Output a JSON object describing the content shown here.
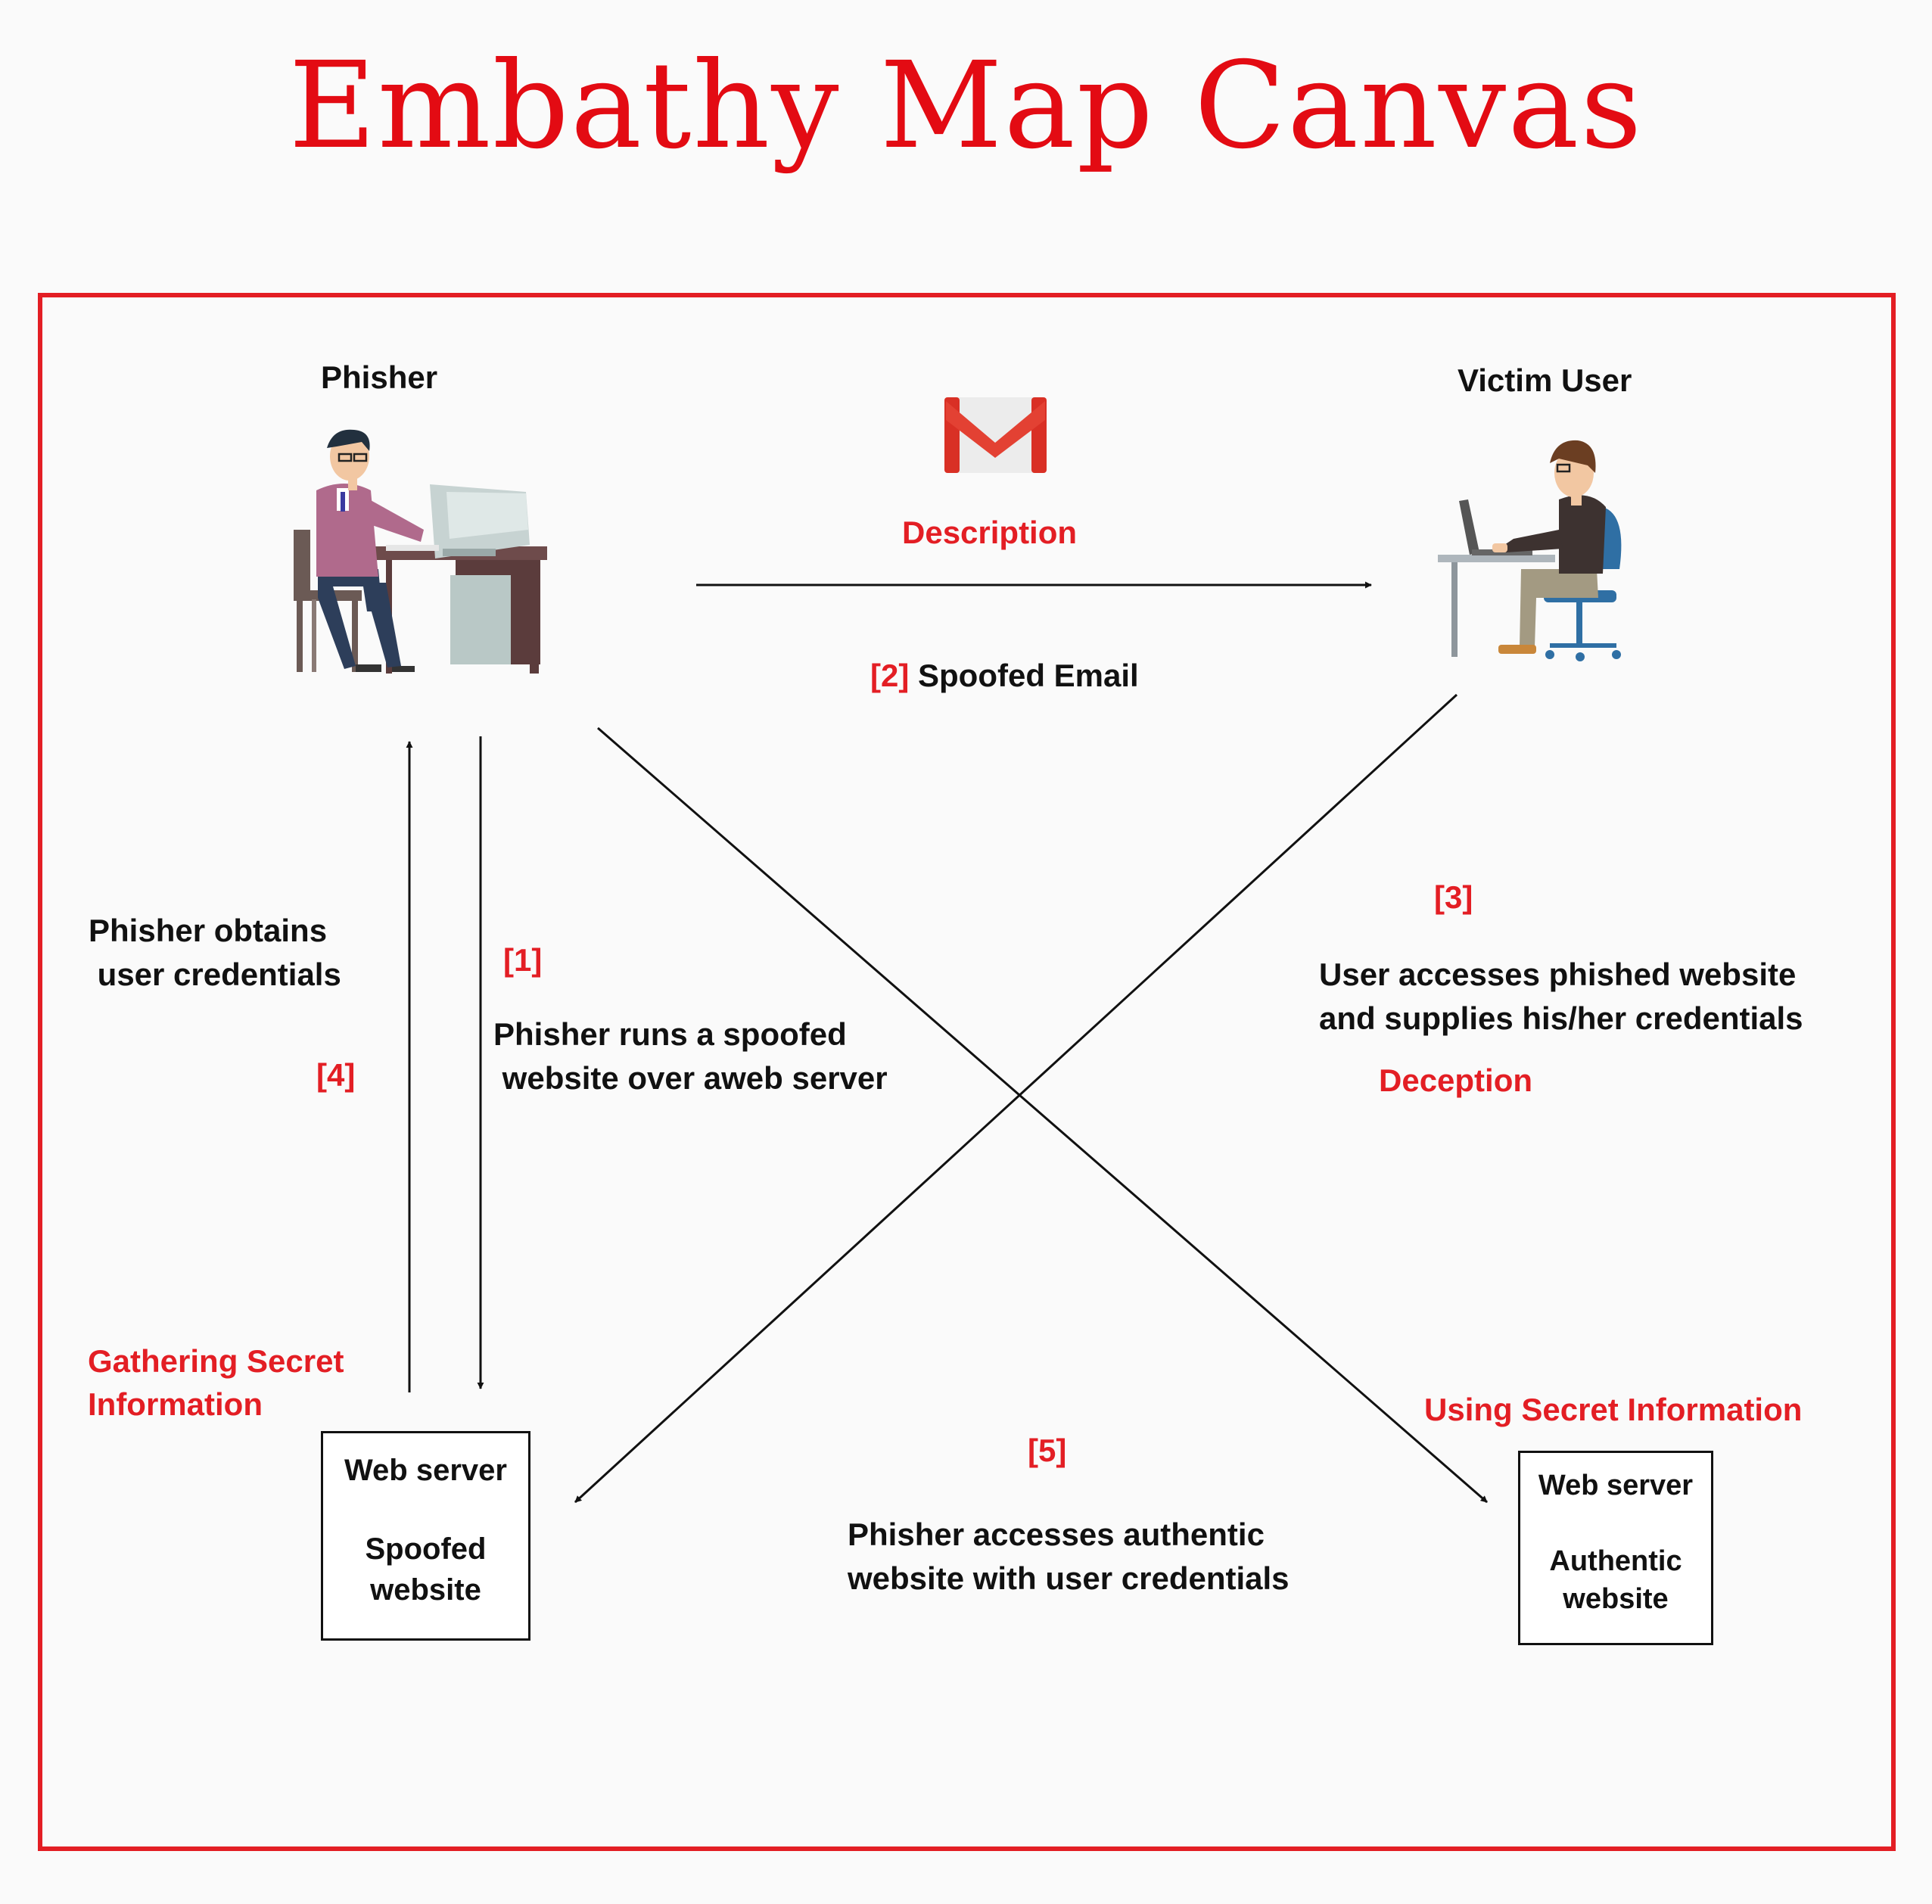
{
  "title": "Embathy Map Canvas",
  "colors": {
    "accent": "#e31e24",
    "text": "#111111",
    "background": "#fafafa"
  },
  "actors": {
    "phisher": {
      "label": "Phisher",
      "icon": "person-at-desktop-icon"
    },
    "victim": {
      "label": "Victim User",
      "icon": "person-at-laptop-icon"
    },
    "email": {
      "icon": "gmail-icon"
    }
  },
  "edges": {
    "email": {
      "heading": "Description",
      "step": "[2]",
      "label": "Spoofed Email"
    },
    "run_site": {
      "step": "[1]",
      "line1": "Phisher runs a spoofed",
      "line2": " website over aweb server"
    },
    "obtain": {
      "step": "[4]",
      "line1": "Phisher obtains",
      "line2": " user credentials",
      "category_line1": "Gathering Secret",
      "category_line2": "Information"
    },
    "access_phished": {
      "step": "[3]",
      "line1": "User accesses phished website",
      "line2": "and supplies his/her credentials",
      "category": "Deception"
    },
    "access_authentic": {
      "step": "[5]",
      "line1": "Phisher accesses authentic",
      "line2": "website with user credentials",
      "category": "Using Secret Information"
    }
  },
  "servers": {
    "spoofed": {
      "line1": "Web server",
      "line2": "Spoofed",
      "line3": "website"
    },
    "authentic": {
      "line1": "Web server",
      "line2": "Authentic",
      "line3": "website"
    }
  }
}
